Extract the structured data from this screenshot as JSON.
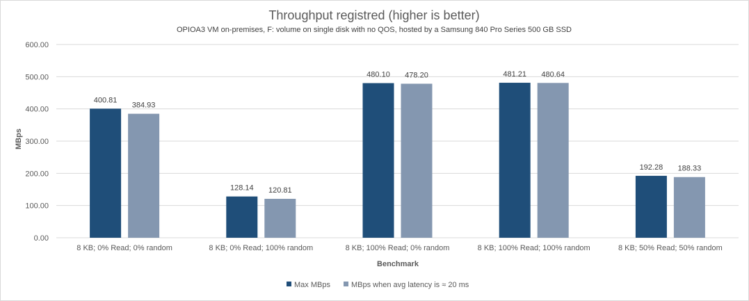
{
  "chart_data": {
    "type": "bar",
    "title": "Throughput registred (higher is better)",
    "subtitle": "OPIOA3 VM on-premises, F: volume on single disk with no QOS, hosted by a Samsung 840 Pro Series 500 GB SSD",
    "xlabel": "Benchmark",
    "ylabel": "MBps",
    "ylim": [
      0,
      600
    ],
    "yticks": [
      "0.00",
      "100.00",
      "200.00",
      "300.00",
      "400.00",
      "500.00",
      "600.00"
    ],
    "grid": true,
    "legend_position": "bottom",
    "categories": [
      "8 KB; 0% Read; 0% random",
      "8 KB; 0% Read; 100% random",
      "8 KB; 100% Read; 0% random",
      "8 KB; 100% Read; 100% random",
      "8 KB; 50% Read; 50% random"
    ],
    "series": [
      {
        "name": "Max MBps",
        "color": "#1f4e79",
        "values": [
          400.81,
          128.14,
          480.1,
          481.21,
          192.28
        ],
        "labels": [
          "400.81",
          "128.14",
          "480.10",
          "481.21",
          "192.28"
        ]
      },
      {
        "name": "MBps when avg latency is ≈ 20 ms",
        "color": "#8497b0",
        "values": [
          384.93,
          120.81,
          478.2,
          480.64,
          188.33
        ],
        "labels": [
          "384.93",
          "120.81",
          "478.20",
          "480.64",
          "188.33"
        ]
      }
    ]
  }
}
